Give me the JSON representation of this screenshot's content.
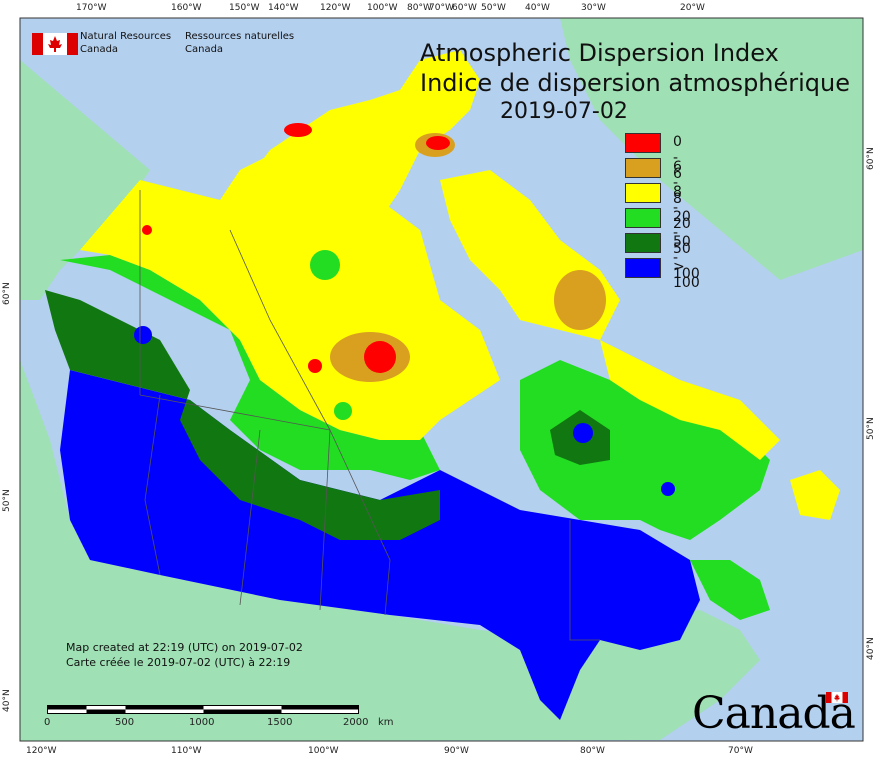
{
  "title": {
    "en": "Atmospheric Dispersion Index",
    "fr": "Indice de dispersion atmosphérique",
    "date": "2019-07-02"
  },
  "agency": {
    "name_en_line1": "Natural Resources",
    "name_en_line2": "Canada",
    "name_fr_line1": "Ressources naturelles",
    "name_fr_line2": "Canada",
    "logo": "canada-flag-icon"
  },
  "legend": [
    {
      "label": "0 - 6",
      "color": "#ff0000"
    },
    {
      "label": "6 - 8",
      "color": "#d9a020"
    },
    {
      "label": "8 - 20",
      "color": "#ffff00"
    },
    {
      "label": "20 - 50",
      "color": "#22dd22"
    },
    {
      "label": "50 - 100",
      "color": "#117711"
    },
    {
      "label": "> 100",
      "color": "#0000ff"
    }
  ],
  "created": {
    "en": "Map created at 22:19 (UTC) on 2019-07-02",
    "fr": "Carte créée le 2019-07-02 (UTC) à 22:19"
  },
  "scale": {
    "ticks": [
      "0",
      "500",
      "1000",
      "1500",
      "2000"
    ],
    "unit": "km"
  },
  "grid": {
    "top": [
      "170°W",
      "160°W",
      "150°W",
      "140°W",
      "120°W",
      "100°W",
      "80°W",
      "70°W",
      "60°W",
      "50°W",
      "40°W",
      "30°W",
      "20°W"
    ],
    "bottom": [
      "120°W",
      "110°W",
      "100°W",
      "90°W",
      "80°W",
      "70°W"
    ],
    "left": [
      "60°N",
      "50°N",
      "40°N"
    ],
    "right": [
      "60°N",
      "50°N",
      "40°N"
    ]
  },
  "wordmark": "Canada",
  "colors": {
    "ocean": "#b4d0ef",
    "land_outside": "#9fe0b4",
    "border": "#555555"
  }
}
